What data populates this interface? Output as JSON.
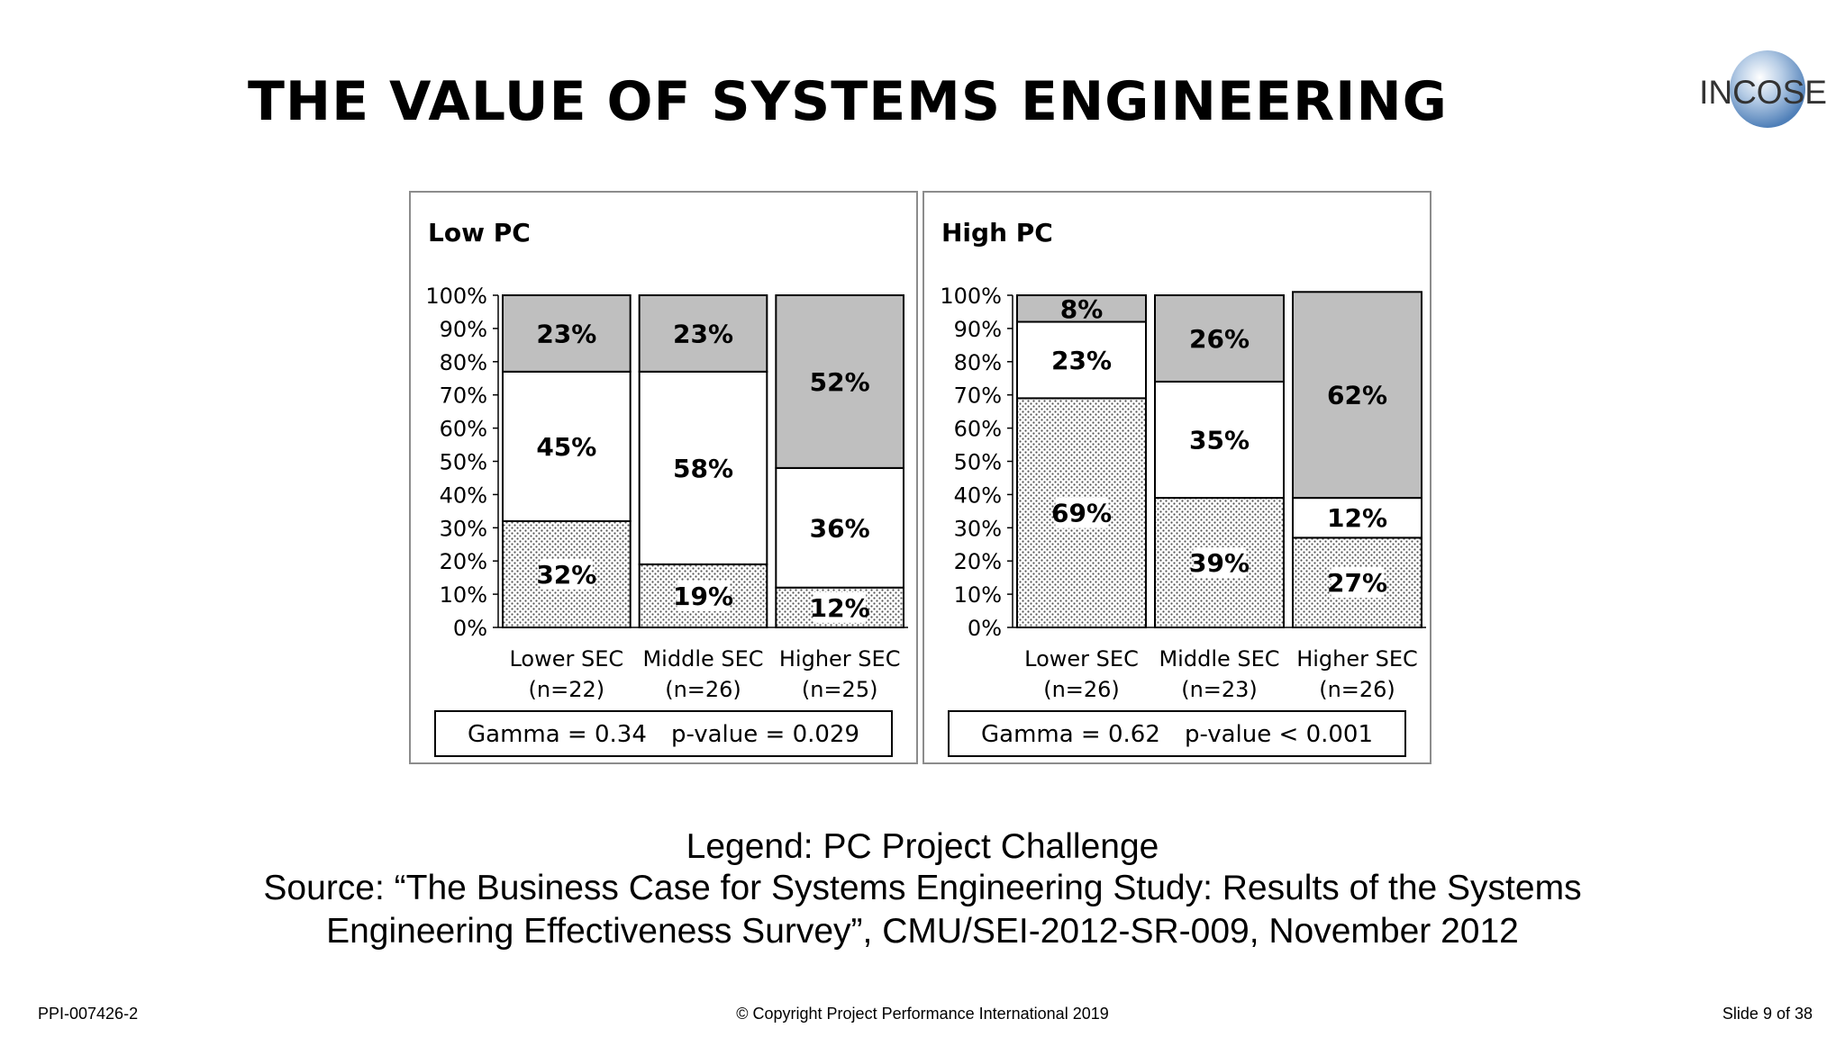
{
  "slide": {
    "title": "THE VALUE OF SYSTEMS ENGINEERING",
    "logo_text": "INCOSE",
    "legend_text": "Legend: PC  Project Challenge",
    "source_line1": "Source: “The Business Case for Systems Engineering Study: Results of the Systems",
    "source_line2": "Engineering Effectiveness Survey”, CMU/SEI-2012-SR-009, November 2012",
    "footer_left": "PPI-007426-2",
    "footer_center": "© Copyright Project Performance International 2019",
    "footer_right": "Slide 9 of 38"
  },
  "colors": {
    "top_segment": "#bfbfbf",
    "middle_segment": "#ffffff",
    "bottom_segment_dots": "#555555",
    "frame": "#8c8c8c"
  },
  "chart_data": [
    {
      "type": "bar",
      "stacked": true,
      "title": "Low PC",
      "categories": [
        "Lower SEC",
        "Middle SEC",
        "Higher SEC"
      ],
      "category_n": [
        "(n=22)",
        "(n=26)",
        "(n=25)"
      ],
      "series": [
        {
          "name": "bottom (dotted)",
          "values": [
            32,
            19,
            12
          ]
        },
        {
          "name": "middle (white)",
          "values": [
            45,
            58,
            36
          ]
        },
        {
          "name": "top (gray)",
          "values": [
            23,
            23,
            52
          ]
        }
      ],
      "ylim": [
        0,
        100
      ],
      "yticks": [
        "0%",
        "10%",
        "20%",
        "30%",
        "40%",
        "50%",
        "60%",
        "70%",
        "80%",
        "90%",
        "100%"
      ],
      "stats": {
        "gamma": "Gamma = 0.34",
        "pvalue": "p-value = 0.029"
      }
    },
    {
      "type": "bar",
      "stacked": true,
      "title": "High PC",
      "categories": [
        "Lower SEC",
        "Middle SEC",
        "Higher SEC"
      ],
      "category_n": [
        "(n=26)",
        "(n=23)",
        "(n=26)"
      ],
      "series": [
        {
          "name": "bottom (dotted)",
          "values": [
            69,
            39,
            27
          ]
        },
        {
          "name": "middle (white)",
          "values": [
            23,
            35,
            12
          ]
        },
        {
          "name": "top (gray)",
          "values": [
            8,
            26,
            62
          ]
        }
      ],
      "ylim": [
        0,
        100
      ],
      "yticks": [
        "0%",
        "10%",
        "20%",
        "30%",
        "40%",
        "50%",
        "60%",
        "70%",
        "80%",
        "90%",
        "100%"
      ],
      "stats": {
        "gamma": "Gamma = 0.62",
        "pvalue": "p-value < 0.001"
      }
    }
  ]
}
